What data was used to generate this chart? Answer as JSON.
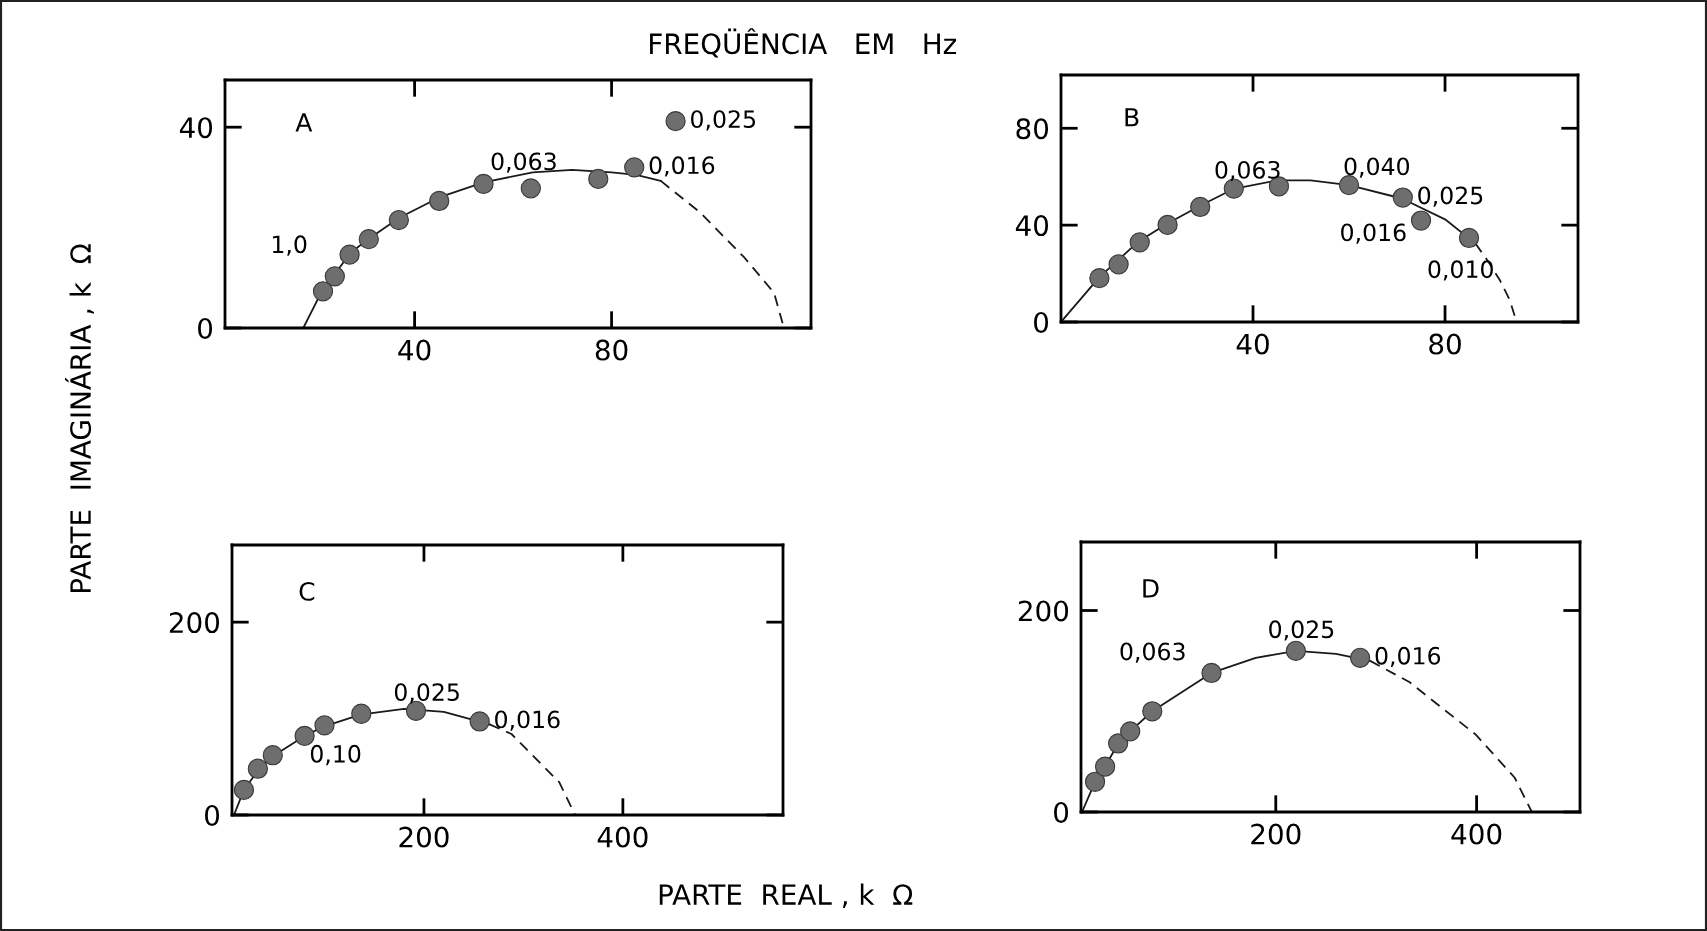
{
  "chart_data": [
    {
      "type": "scatter",
      "title": "FREQÜÊNCIA   EM   Hz",
      "xlabel": "PARTE  REAL , k  Ω",
      "ylabel": "PARTE  IMAGINÁRIA , k  Ω",
      "xlim": [
        1.5,
        120.5
      ],
      "ylim": [
        0,
        49.4
      ],
      "xticks": [
        40,
        80
      ],
      "yticks": [
        0,
        40
      ],
      "grid": false,
      "annotations": [
        "A",
        {
          "text": "1,0",
          "x": 26.8,
          "y": 14.6
        },
        {
          "text": "0,063",
          "x": 63.6,
          "y": 27.8
        },
        {
          "text": "0,016",
          "x": 84.6,
          "y": 32.0
        },
        {
          "text": "0,025",
          "x": 93.0,
          "y": 41.2
        }
      ],
      "series": [
        {
          "marker": "circle",
          "color": "#6e6e6e",
          "x": [
            21.4,
            23.8,
            26.8,
            30.7,
            36.8,
            45.0,
            54.0,
            63.6,
            77.3,
            84.6,
            93.0
          ],
          "values": [
            7.3,
            10.3,
            14.6,
            17.7,
            21.5,
            25.3,
            28.7,
            27.8,
            29.7,
            32.0,
            41.2
          ]
        },
        {
          "type": "line",
          "marker": "none",
          "color": "#1a1a1a",
          "line_style": "solid",
          "x": [
            17.4,
            21,
            24,
            27,
            31,
            37,
            45,
            54,
            64,
            72,
            80,
            85,
            90
          ],
          "values": [
            0,
            7,
            11,
            15,
            18,
            22,
            26,
            29,
            31,
            31.5,
            31,
            30.5,
            29.3
          ]
        },
        {
          "type": "line",
          "marker": "none",
          "color": "#1a1a1a",
          "line_style": "dashed",
          "x": [
            90,
            98,
            107,
            113,
            115
          ],
          "values": [
            29.3,
            23,
            14,
            7,
            0
          ]
        }
      ]
    },
    {
      "type": "scatter",
      "xlim": [
        0,
        107.7
      ],
      "ylim": [
        0,
        102
      ],
      "xticks": [
        40,
        80
      ],
      "yticks": [
        0,
        40,
        80
      ],
      "grid": false,
      "annotations": [
        "B",
        {
          "text": "0,063",
          "x": 36.0,
          "y": 55.1
        },
        {
          "text": "0,040",
          "x": 60.0,
          "y": 56.5
        },
        {
          "text": "0,025",
          "x": 71.2,
          "y": 51.4
        },
        {
          "text": "0,016",
          "x": 75.0,
          "y": 41.9
        },
        {
          "text": "0,010",
          "x": 85.0,
          "y": 34.7
        }
      ],
      "series": [
        {
          "marker": "circle",
          "color": "#6e6e6e",
          "x": [
            8.0,
            12.0,
            16.4,
            22.2,
            29.0,
            36.0,
            45.4,
            60.0,
            71.2,
            75.0,
            85.0
          ],
          "values": [
            18.1,
            23.8,
            32.9,
            40.1,
            47.5,
            55.1,
            56.0,
            56.5,
            51.4,
            41.9,
            34.7
          ]
        },
        {
          "type": "line",
          "marker": "none",
          "color": "#1a1a1a",
          "line_style": "solid",
          "x": [
            0,
            8,
            16,
            22,
            29,
            36,
            45,
            52,
            60,
            71,
            80,
            86.3
          ],
          "values": [
            0,
            18.5,
            33,
            40.5,
            48,
            55,
            58.5,
            58.5,
            56.5,
            51,
            42.4,
            32.5
          ]
        },
        {
          "type": "line",
          "marker": "none",
          "color": "#1a1a1a",
          "line_style": "dashed",
          "x": [
            86.3,
            89,
            91.5,
            93.5,
            94.9
          ],
          "values": [
            32.5,
            25,
            17,
            9,
            0
          ]
        }
      ]
    },
    {
      "type": "scatter",
      "xlim": [
        7,
        561
      ],
      "ylim": [
        0,
        280
      ],
      "xticks": [
        200,
        400
      ],
      "yticks": [
        0,
        200
      ],
      "grid": false,
      "annotations": [
        "C",
        {
          "text": "0,10",
          "x": 100,
          "y": 93
        },
        {
          "text": "0,025",
          "x": 192,
          "y": 108
        },
        {
          "text": "0,016",
          "x": 256,
          "y": 97
        }
      ],
      "series": [
        {
          "marker": "circle",
          "color": "#6e6e6e",
          "x": [
            19,
            33,
            48,
            80,
            100,
            137,
            192,
            256
          ],
          "values": [
            26,
            48,
            62,
            82,
            93,
            105,
            108,
            97
          ]
        },
        {
          "type": "line",
          "marker": "none",
          "color": "#1a1a1a",
          "line_style": "solid",
          "x": [
            9,
            19,
            33,
            48,
            80,
            100,
            136,
            180,
            220,
            266
          ],
          "values": [
            0,
            26,
            46,
            61,
            82,
            92,
            104,
            110,
            107,
            94
          ]
        },
        {
          "type": "line",
          "marker": "none",
          "color": "#1a1a1a",
          "line_style": "dashed",
          "x": [
            266,
            288,
            310,
            336,
            352
          ],
          "values": [
            94,
            84,
            61,
            34,
            0
          ]
        }
      ]
    },
    {
      "type": "scatter",
      "xlim": [
        6,
        503
      ],
      "ylim": [
        0,
        268
      ],
      "xticks": [
        200,
        400
      ],
      "yticks": [
        0,
        200
      ],
      "grid": false,
      "annotations": [
        "D",
        {
          "text": "0,063",
          "x": 136,
          "y": 138
        },
        {
          "text": "0,025",
          "x": 220,
          "y": 160
        },
        {
          "text": "0,016",
          "x": 284,
          "y": 153
        }
      ],
      "series": [
        {
          "marker": "circle",
          "color": "#6e6e6e",
          "x": [
            20,
            30,
            43,
            55,
            77,
            136,
            220,
            284
          ],
          "values": [
            30,
            45,
            68,
            80,
            100,
            138,
            160,
            153
          ]
        },
        {
          "type": "line",
          "marker": "none",
          "color": "#1a1a1a",
          "line_style": "solid",
          "x": [
            7,
            20,
            30,
            43,
            55,
            77,
            136,
            180,
            220,
            260,
            294
          ],
          "values": [
            0,
            30,
            45,
            68,
            80,
            100,
            138,
            153,
            160,
            157,
            150
          ]
        },
        {
          "type": "line",
          "marker": "none",
          "color": "#1a1a1a",
          "line_style": "dashed",
          "x": [
            294,
            333,
            399,
            438,
            455
          ],
          "values": [
            150,
            129,
            77,
            34,
            0
          ]
        }
      ]
    }
  ]
}
